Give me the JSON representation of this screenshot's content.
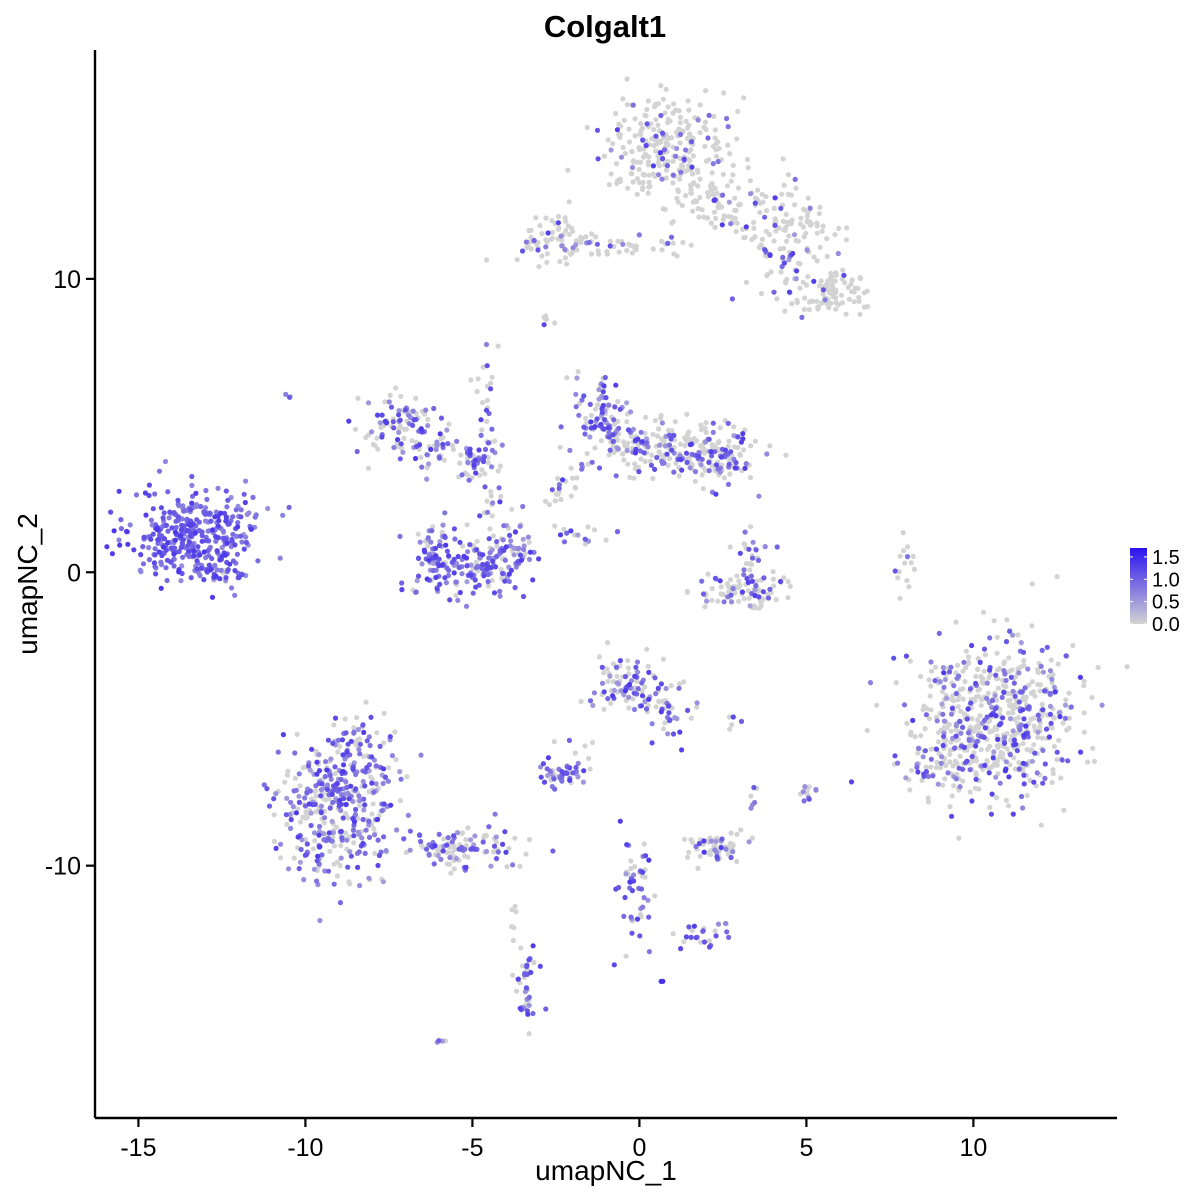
{
  "chart_data": {
    "type": "scatter",
    "title": "Colgalt1",
    "xlabel": "umapNC_1",
    "ylabel": "umapNC_2",
    "xlim": [
      -16.3,
      14.3
    ],
    "ylim": [
      -18.6,
      17.8
    ],
    "x_ticks": [
      -15,
      -10,
      -5,
      0,
      5,
      10
    ],
    "x_tick_labels": [
      "-15",
      "-10",
      "-5",
      "0",
      "5",
      "10"
    ],
    "y_ticks": [
      -10,
      0,
      10
    ],
    "y_tick_labels": [
      "-10",
      "0",
      "10"
    ],
    "grid": false,
    "legend": {
      "position": "right",
      "type": "colorbar",
      "low_color": "#d3d3d3",
      "high_color": "#2b12f0",
      "range": [
        0,
        1.7
      ],
      "breaks": [
        0.0,
        0.5,
        1.0,
        1.5
      ],
      "labels": [
        "0.0",
        "0.5",
        "1.0",
        "1.5"
      ]
    },
    "clusters": [
      {
        "cx": -13.4,
        "cy": 1.2,
        "sx": 0.9,
        "sy": 0.8,
        "n": 340,
        "expr": 1.1
      },
      {
        "cx": -12.0,
        "cy": 2.0,
        "sx": 0.5,
        "sy": 0.5,
        "n": 30,
        "expr": 0.9
      },
      {
        "cx": -12.6,
        "cy": 0.0,
        "sx": 0.5,
        "sy": 0.2,
        "n": 25,
        "expr": 0.7
      },
      {
        "cx": 0.8,
        "cy": 14.5,
        "sx": 0.9,
        "sy": 0.9,
        "n": 260,
        "expr": 0.15
      },
      {
        "cx": 2.6,
        "cy": 12.5,
        "sx": 1.0,
        "sy": 0.5,
        "n": 90,
        "expr": 0.1
      },
      {
        "cx": 4.5,
        "cy": 11.3,
        "sx": 0.8,
        "sy": 0.8,
        "n": 110,
        "expr": 0.15
      },
      {
        "cx": 5.6,
        "cy": 9.6,
        "sx": 0.7,
        "sy": 0.4,
        "n": 90,
        "expr": 0.15
      },
      {
        "cx": -2.5,
        "cy": 11.3,
        "sx": 0.6,
        "sy": 0.4,
        "n": 70,
        "expr": 0.2
      },
      {
        "cx": -0.5,
        "cy": 11.1,
        "sx": 1.2,
        "sy": 0.2,
        "n": 40,
        "expr": 0.2
      },
      {
        "cx": -7.3,
        "cy": 5.2,
        "sx": 0.5,
        "sy": 0.4,
        "n": 70,
        "expr": 0.5
      },
      {
        "cx": -6.3,
        "cy": 4.3,
        "sx": 0.8,
        "sy": 0.4,
        "n": 60,
        "expr": 0.5
      },
      {
        "cx": -4.9,
        "cy": 3.8,
        "sx": 0.4,
        "sy": 0.3,
        "n": 40,
        "expr": 0.55
      },
      {
        "cx": -4.6,
        "cy": 5.6,
        "sx": 0.2,
        "sy": 0.9,
        "n": 25,
        "expr": 0.45
      },
      {
        "cx": -5.0,
        "cy": 0.2,
        "sx": 0.9,
        "sy": 0.5,
        "n": 160,
        "expr": 0.75
      },
      {
        "cx": -6.2,
        "cy": 0.7,
        "sx": 0.3,
        "sy": 0.5,
        "n": 40,
        "expr": 0.7
      },
      {
        "cx": -3.8,
        "cy": 1.0,
        "sx": 0.3,
        "sy": 0.6,
        "n": 40,
        "expr": 0.65
      },
      {
        "cx": -4.3,
        "cy": 2.3,
        "sx": 0.2,
        "sy": 0.5,
        "n": 15,
        "expr": 0.5
      },
      {
        "cx": -1.0,
        "cy": 5.5,
        "sx": 0.4,
        "sy": 0.6,
        "n": 90,
        "expr": 0.6
      },
      {
        "cx": 0.6,
        "cy": 4.2,
        "sx": 1.2,
        "sy": 0.5,
        "n": 170,
        "expr": 0.35
      },
      {
        "cx": 2.2,
        "cy": 3.9,
        "sx": 0.7,
        "sy": 0.5,
        "n": 110,
        "expr": 0.4
      },
      {
        "cx": -2.3,
        "cy": 2.8,
        "sx": 0.3,
        "sy": 0.4,
        "n": 20,
        "expr": 0.3
      },
      {
        "cx": -2.0,
        "cy": 1.3,
        "sx": 0.6,
        "sy": 0.2,
        "n": 15,
        "expr": 0.4
      },
      {
        "cx": 3.1,
        "cy": -0.6,
        "sx": 0.8,
        "sy": 0.3,
        "n": 90,
        "expr": 0.25
      },
      {
        "cx": 3.3,
        "cy": 0.7,
        "sx": 0.3,
        "sy": 0.5,
        "n": 25,
        "expr": 0.3
      },
      {
        "cx": 8.0,
        "cy": 0.2,
        "sx": 0.15,
        "sy": 0.5,
        "n": 15,
        "expr": 0.05
      },
      {
        "cx": 10.7,
        "cy": -5.0,
        "sx": 1.3,
        "sy": 1.3,
        "n": 600,
        "expr": 0.28
      },
      {
        "cx": 9.0,
        "cy": -6.5,
        "sx": 0.5,
        "sy": 0.6,
        "n": 60,
        "expr": 0.3
      },
      {
        "cx": -0.4,
        "cy": -3.8,
        "sx": 0.5,
        "sy": 0.5,
        "n": 90,
        "expr": 0.5
      },
      {
        "cx": 1.0,
        "cy": -4.5,
        "sx": 0.4,
        "sy": 0.6,
        "n": 40,
        "expr": 0.5
      },
      {
        "cx": -9.0,
        "cy": -8.0,
        "sx": 0.9,
        "sy": 1.2,
        "n": 380,
        "expr": 0.6
      },
      {
        "cx": -8.6,
        "cy": -6.0,
        "sx": 0.4,
        "sy": 0.6,
        "n": 50,
        "expr": 0.55
      },
      {
        "cx": -5.5,
        "cy": -9.3,
        "sx": 0.9,
        "sy": 0.4,
        "n": 110,
        "expr": 0.5
      },
      {
        "cx": -2.4,
        "cy": -6.9,
        "sx": 0.4,
        "sy": 0.2,
        "n": 40,
        "expr": 0.8
      },
      {
        "cx": -1.8,
        "cy": -6.2,
        "sx": 0.3,
        "sy": 0.4,
        "n": 10,
        "expr": 0.3
      },
      {
        "cx": 2.2,
        "cy": -9.4,
        "sx": 0.5,
        "sy": 0.3,
        "n": 60,
        "expr": 0.25
      },
      {
        "cx": 5.0,
        "cy": -7.4,
        "sx": 0.2,
        "sy": 0.2,
        "n": 12,
        "expr": 0.4
      },
      {
        "cx": 3.4,
        "cy": -7.7,
        "sx": 0.1,
        "sy": 0.2,
        "n": 6,
        "expr": 0.3
      },
      {
        "cx": 2.8,
        "cy": -5.1,
        "sx": 0.1,
        "sy": 0.1,
        "n": 5,
        "expr": 0.6
      },
      {
        "cx": -0.1,
        "cy": -11.0,
        "sx": 0.25,
        "sy": 1.0,
        "n": 50,
        "expr": 0.6
      },
      {
        "cx": 1.8,
        "cy": -12.4,
        "sx": 0.5,
        "sy": 0.3,
        "n": 25,
        "expr": 0.55
      },
      {
        "cx": -3.4,
        "cy": -14.2,
        "sx": 0.2,
        "sy": 0.8,
        "n": 40,
        "expr": 0.55
      },
      {
        "cx": -3.8,
        "cy": -12.0,
        "sx": 0.1,
        "sy": 0.5,
        "n": 6,
        "expr": 0.3
      },
      {
        "cx": -6.0,
        "cy": -16.0,
        "sx": 0.1,
        "sy": 0.1,
        "n": 4,
        "expr": 0.6
      },
      {
        "cx": 0.7,
        "cy": -14.0,
        "sx": 0.05,
        "sy": 0.05,
        "n": 2,
        "expr": 1.2
      },
      {
        "cx": -2.8,
        "cy": 8.6,
        "sx": 0.15,
        "sy": 0.1,
        "n": 6,
        "expr": 0.3
      },
      {
        "cx": -10.5,
        "cy": 6.0,
        "sx": 0.1,
        "sy": 0.1,
        "n": 3,
        "expr": 0.5
      }
    ]
  }
}
